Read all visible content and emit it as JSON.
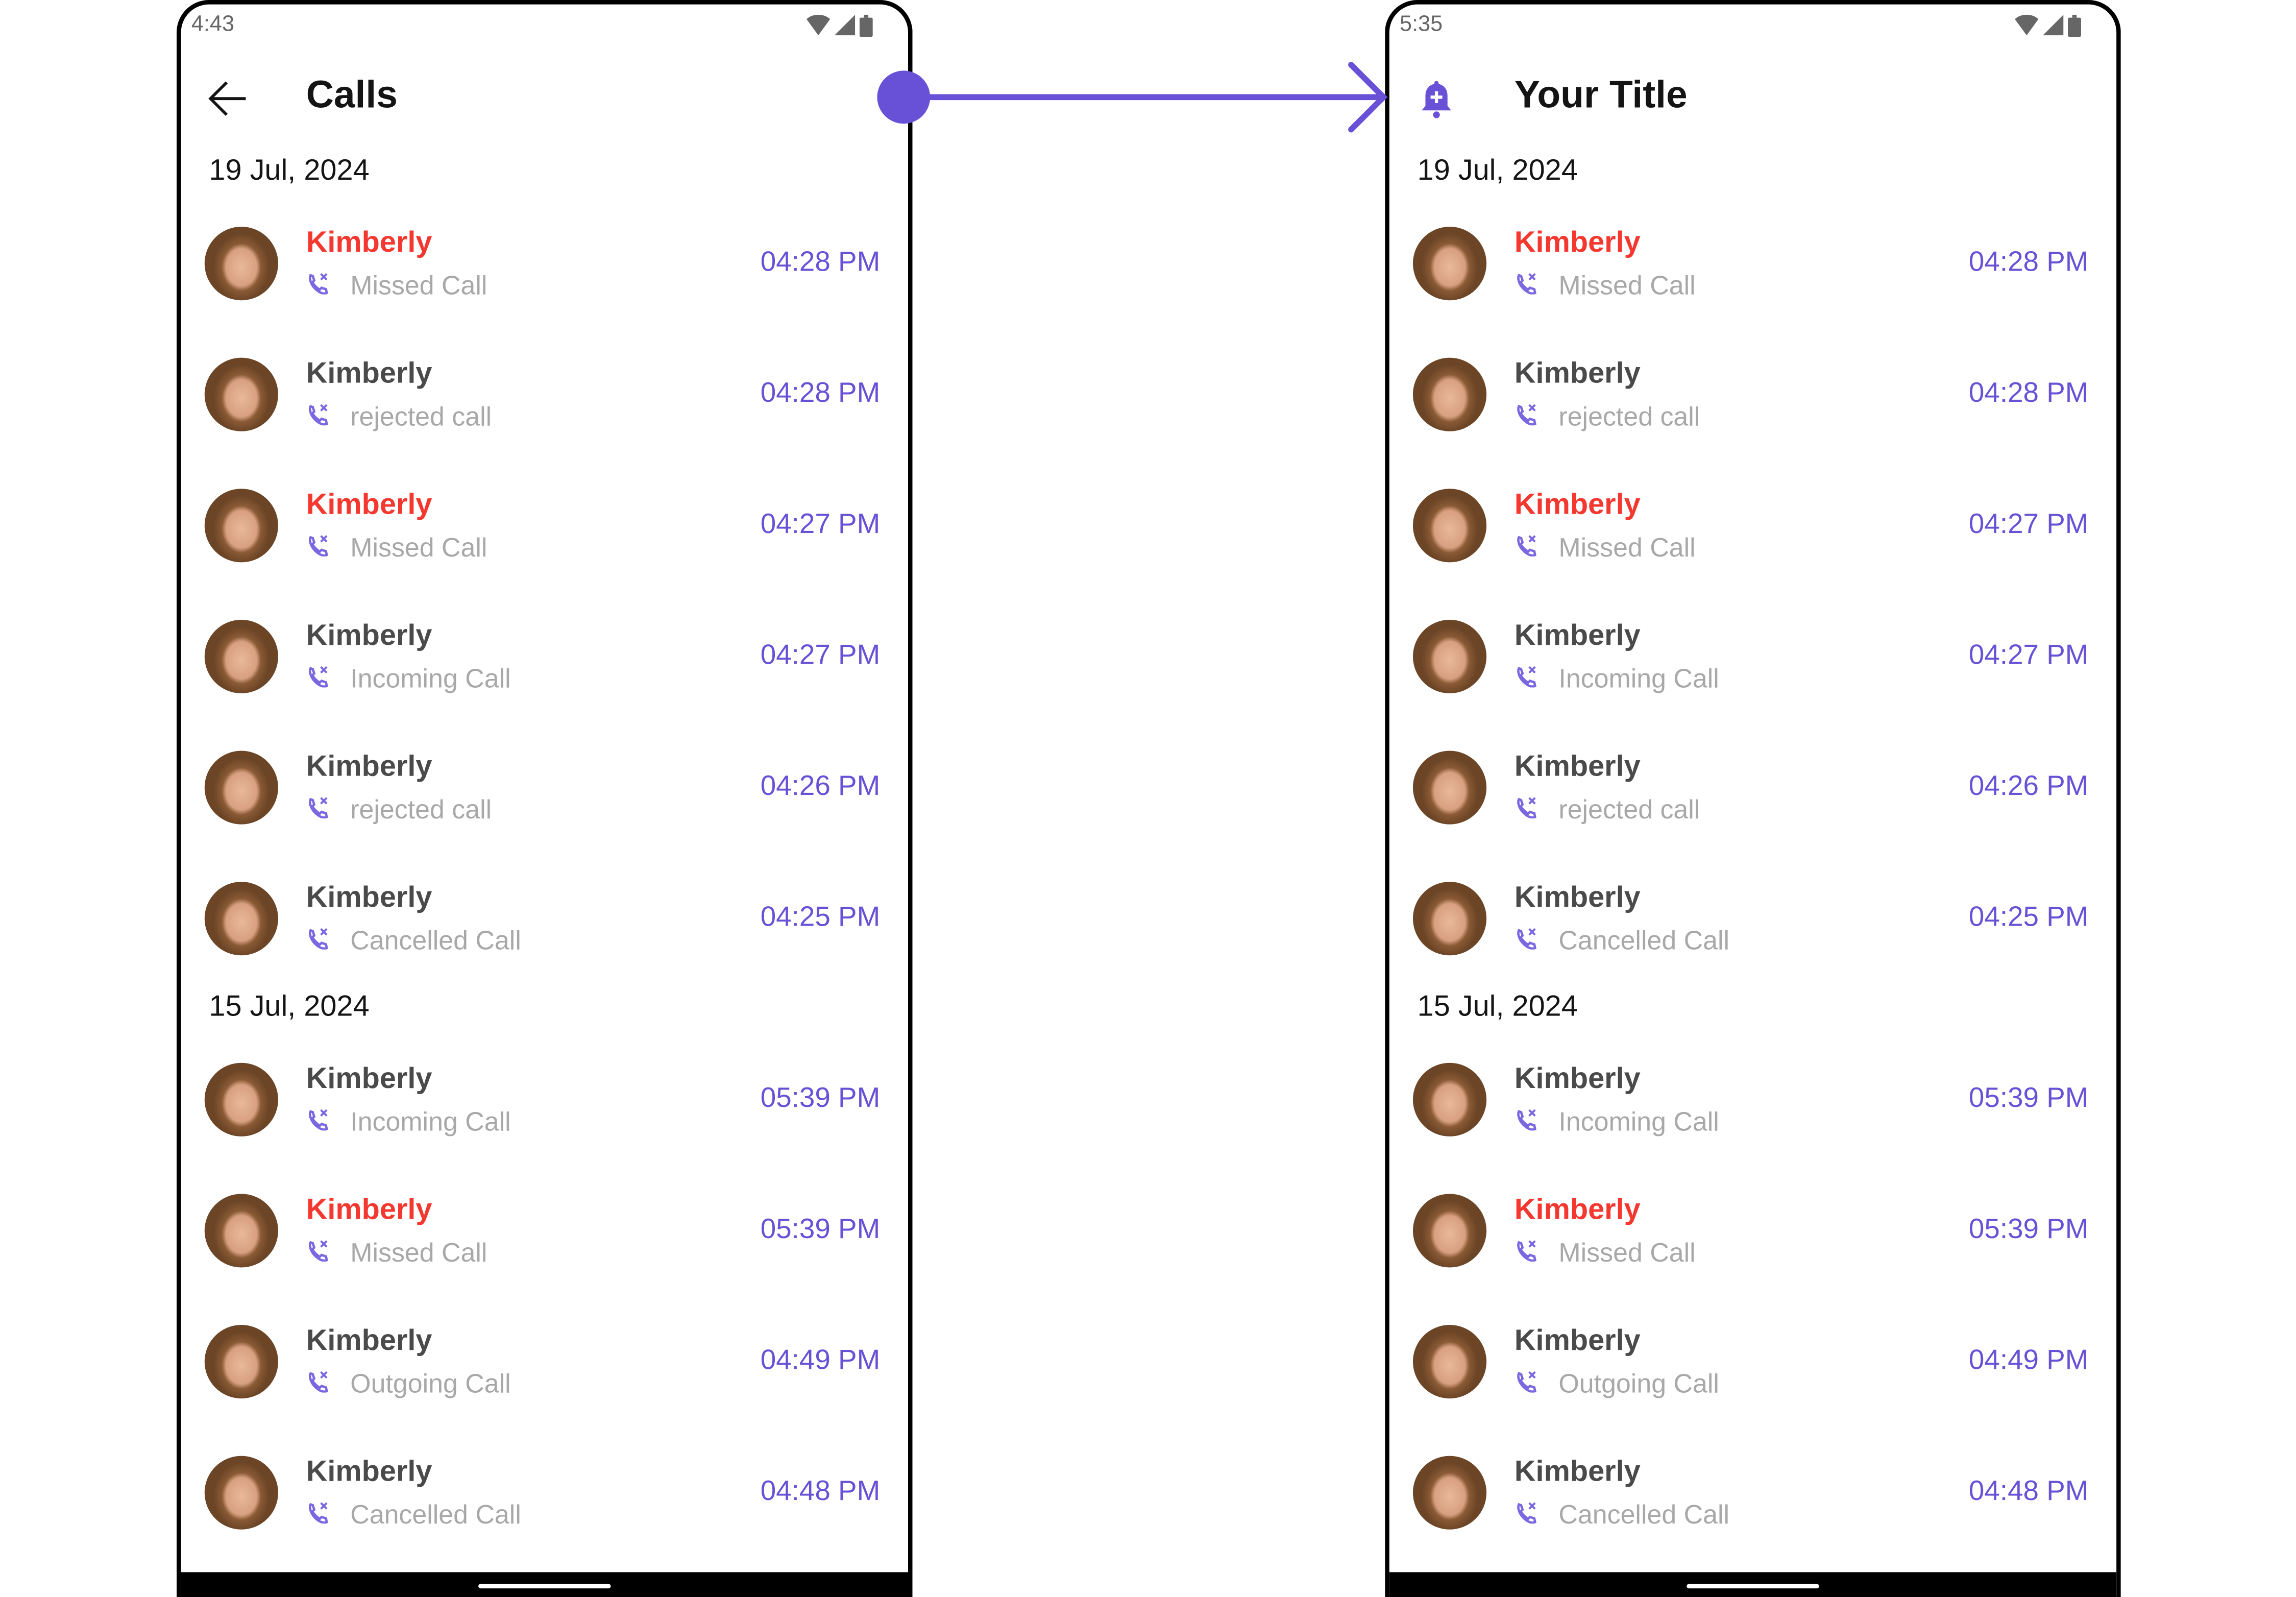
{
  "colors": {
    "accent": "#6851d6",
    "missed": "#f4382f",
    "name": "#4a4a4a",
    "subtitle": "#a8a8a8"
  },
  "screens": [
    {
      "status_time": "4:43",
      "title": "Calls",
      "leading_icon": "back-arrow-icon",
      "sections": [
        {
          "date": "19 Jul, 2024",
          "items": [
            {
              "name": "Kimberly",
              "type": "Missed Call",
              "time": "04:28 PM",
              "missed": true
            },
            {
              "name": "Kimberly",
              "type": "rejected call",
              "time": "04:28 PM",
              "missed": false
            },
            {
              "name": "Kimberly",
              "type": "Missed Call",
              "time": "04:27 PM",
              "missed": true
            },
            {
              "name": "Kimberly",
              "type": "Incoming Call",
              "time": "04:27 PM",
              "missed": false
            },
            {
              "name": "Kimberly",
              "type": "rejected call",
              "time": "04:26 PM",
              "missed": false
            },
            {
              "name": "Kimberly",
              "type": "Cancelled Call",
              "time": "04:25 PM",
              "missed": false
            }
          ]
        },
        {
          "date": "15 Jul, 2024",
          "items": [
            {
              "name": "Kimberly",
              "type": "Incoming Call",
              "time": "05:39 PM",
              "missed": false
            },
            {
              "name": "Kimberly",
              "type": "Missed Call",
              "time": "05:39 PM",
              "missed": true
            },
            {
              "name": "Kimberly",
              "type": "Outgoing Call",
              "time": "04:49 PM",
              "missed": false
            },
            {
              "name": "Kimberly",
              "type": "Cancelled Call",
              "time": "04:48 PM",
              "missed": false
            }
          ]
        }
      ]
    },
    {
      "status_time": "5:35",
      "title": "Your Title",
      "leading_icon": "bell-plus-icon",
      "sections": [
        {
          "date": "19 Jul, 2024",
          "items": [
            {
              "name": "Kimberly",
              "type": "Missed Call",
              "time": "04:28 PM",
              "missed": true
            },
            {
              "name": "Kimberly",
              "type": "rejected call",
              "time": "04:28 PM",
              "missed": false
            },
            {
              "name": "Kimberly",
              "type": "Missed Call",
              "time": "04:27 PM",
              "missed": true
            },
            {
              "name": "Kimberly",
              "type": "Incoming Call",
              "time": "04:27 PM",
              "missed": false
            },
            {
              "name": "Kimberly",
              "type": "rejected call",
              "time": "04:26 PM",
              "missed": false
            },
            {
              "name": "Kimberly",
              "type": "Cancelled Call",
              "time": "04:25 PM",
              "missed": false
            }
          ]
        },
        {
          "date": "15 Jul, 2024",
          "items": [
            {
              "name": "Kimberly",
              "type": "Incoming Call",
              "time": "05:39 PM",
              "missed": false
            },
            {
              "name": "Kimberly",
              "type": "Missed Call",
              "time": "05:39 PM",
              "missed": true
            },
            {
              "name": "Kimberly",
              "type": "Outgoing Call",
              "time": "04:49 PM",
              "missed": false
            },
            {
              "name": "Kimberly",
              "type": "Cancelled Call",
              "time": "04:48 PM",
              "missed": false
            }
          ]
        }
      ]
    }
  ]
}
